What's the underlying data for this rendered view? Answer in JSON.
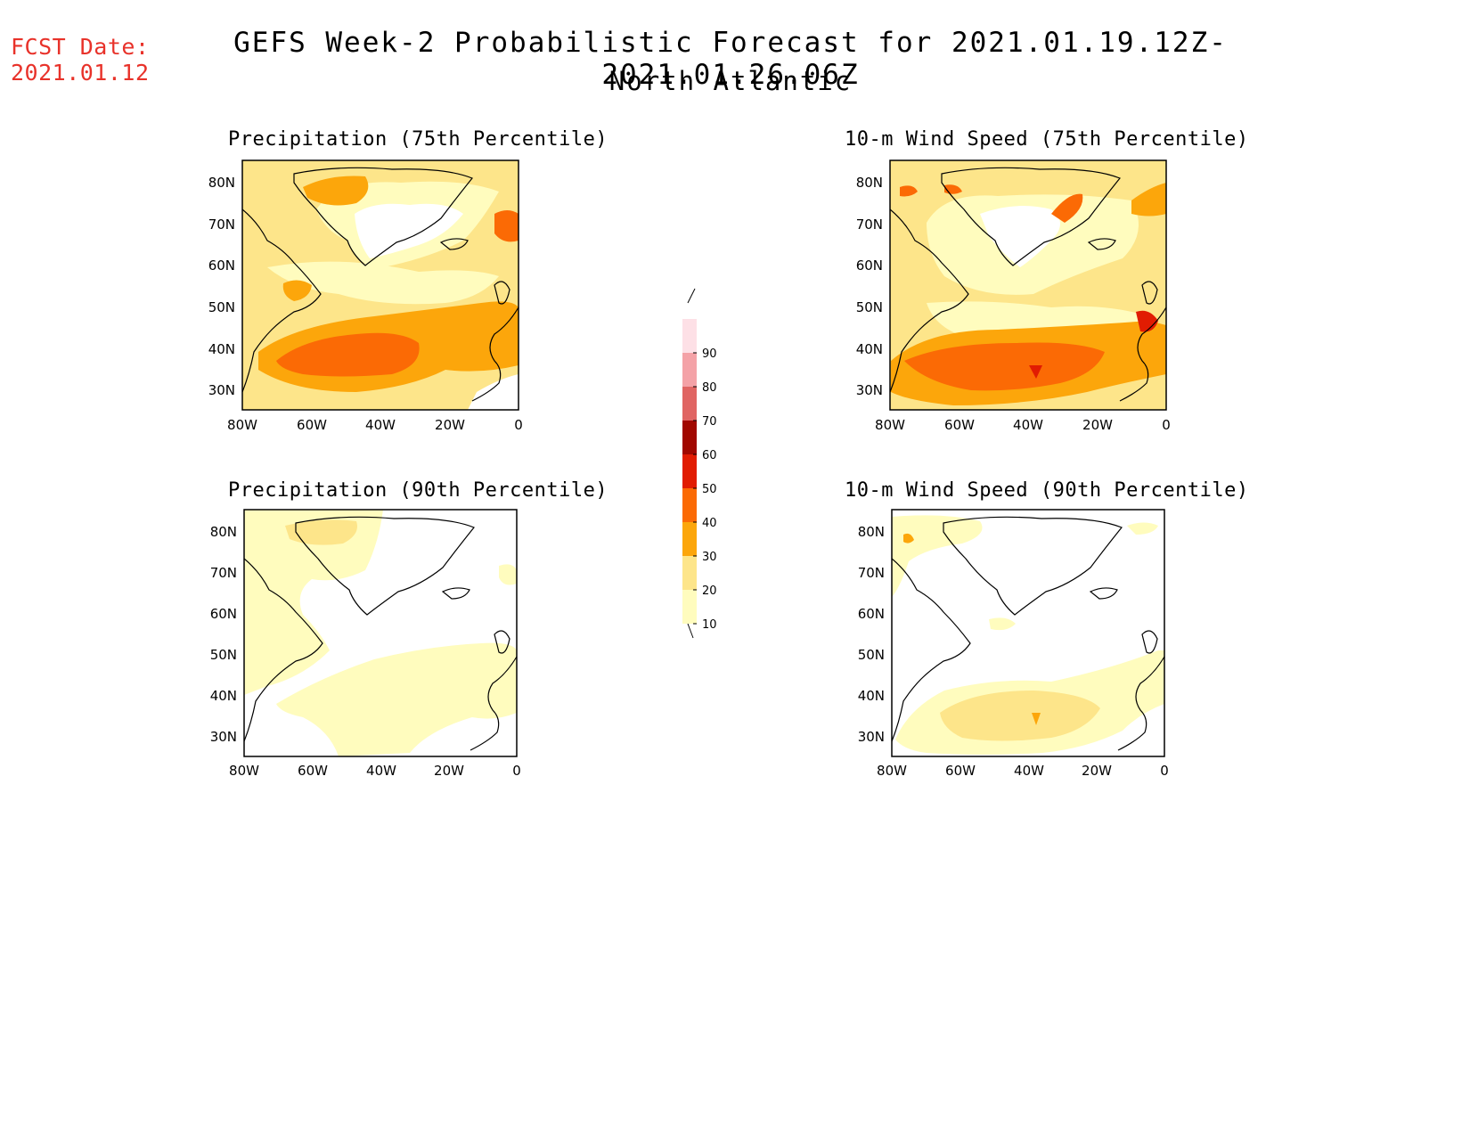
{
  "header": {
    "fcst_label": "FCST Date:",
    "fcst_date": "2021.01.12",
    "title": "GEFS Week-2 Probabilistic Forecast for 2021.01.19.12Z-2021.01.26.06Z",
    "subtitle": "North Atlantic"
  },
  "panels": [
    {
      "id": "precip75",
      "title": "Precipitation (75th Percentile)",
      "level": "high"
    },
    {
      "id": "wind75",
      "title": "10-m Wind Speed (75th Percentile)",
      "level": "high"
    },
    {
      "id": "precip90",
      "title": "Precipitation (90th Percentile)",
      "level": "low"
    },
    {
      "id": "wind90",
      "title": "10-m Wind Speed (90th Percentile)",
      "level": "low"
    }
  ],
  "axes": {
    "lat_labels": [
      "80N",
      "70N",
      "60N",
      "50N",
      "40N",
      "30N"
    ],
    "lon_labels": [
      "80W",
      "60W",
      "40W",
      "20W",
      "0"
    ]
  },
  "colorbar": {
    "levels": [
      "10",
      "20",
      "30",
      "40",
      "50",
      "60",
      "70",
      "80",
      "90"
    ],
    "colors": [
      "#fffcbe",
      "#fde58a",
      "#fca60b",
      "#fb6a05",
      "#e11c02",
      "#a10800",
      "#e06563",
      "#f4a2a7",
      "#fde0e6"
    ]
  }
}
